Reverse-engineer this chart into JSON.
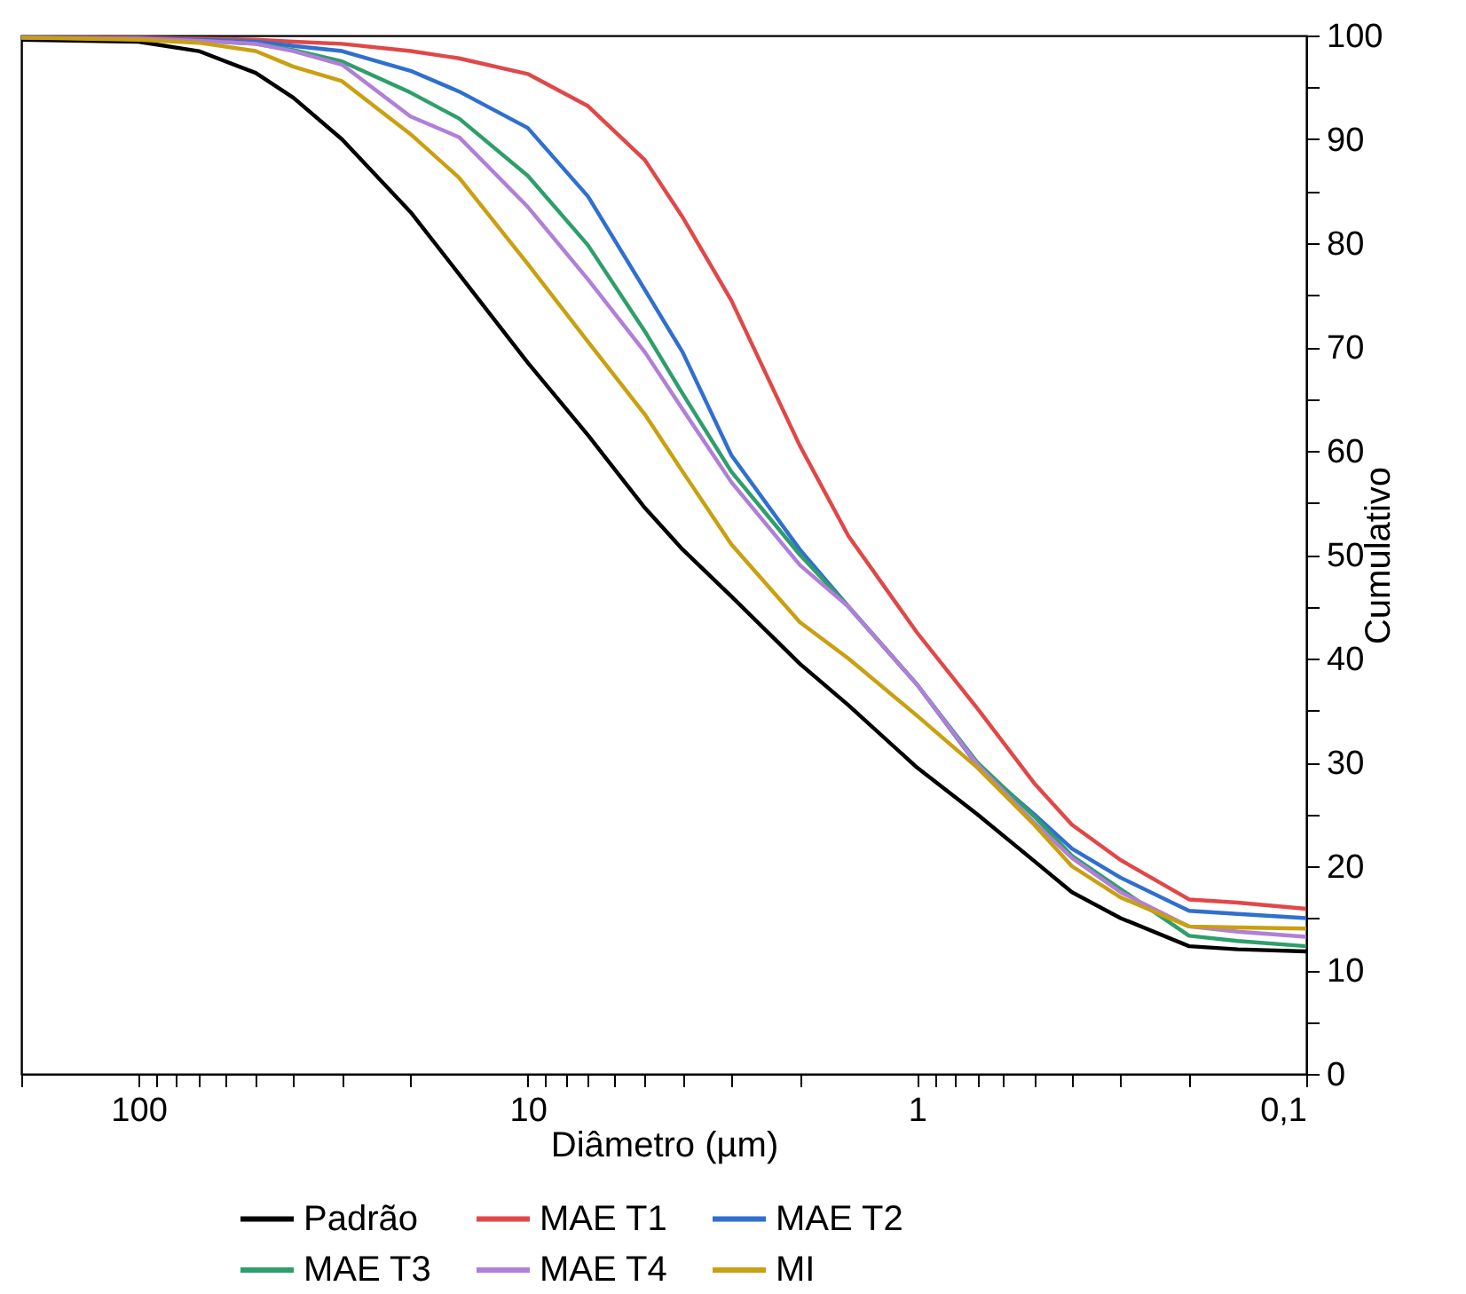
{
  "chart_data": {
    "type": "line",
    "xlabel": "Diâmetro (µm)",
    "ylabel": "Cumulativo",
    "x": [
      200,
      100,
      70,
      50,
      40,
      30,
      20,
      15,
      10,
      7,
      5,
      4,
      3,
      2,
      1.5,
      1,
      0.7,
      0.5,
      0.4,
      0.3,
      0.2,
      0.15,
      0.1
    ],
    "series": [
      {
        "name": "Padrão",
        "color": "#000000",
        "values": [
          99.6,
          99.4,
          98.5,
          96.4,
          94,
          90,
          83,
          77,
          68.5,
          61.5,
          54.5,
          50.5,
          46,
          39.5,
          35.5,
          29.5,
          25,
          20.5,
          17.5,
          15,
          12.3,
          12,
          11.8
        ]
      },
      {
        "name": "MAE T1",
        "color": "#e04848",
        "values": [
          99.8,
          99.8,
          99.7,
          99.6,
          99.4,
          99.2,
          98.5,
          97.8,
          96.3,
          93.2,
          88,
          82.5,
          74.5,
          60.5,
          51.8,
          42.5,
          35.2,
          28,
          24,
          20.6,
          16.8,
          16.5,
          15.9
        ]
      },
      {
        "name": "MAE T2",
        "color": "#2f6fd0",
        "values": [
          99.8,
          99.7,
          99.6,
          99.4,
          99,
          98.5,
          96.6,
          94.6,
          91.1,
          84.5,
          75.5,
          69.5,
          59.6,
          50.5,
          45,
          37.5,
          29.7,
          25,
          21.7,
          18.9,
          15.7,
          15.4,
          15
        ]
      },
      {
        "name": "MAE T3",
        "color": "#2e9e6a",
        "values": [
          null,
          null,
          99.5,
          99.2,
          98.6,
          97.5,
          94.5,
          92,
          86.5,
          79.8,
          71.5,
          65.5,
          58,
          50,
          45,
          37.5,
          30,
          24.8,
          21,
          17.8,
          13.3,
          12.8,
          12.3
        ]
      },
      {
        "name": "MAE T4",
        "color": "#b07fd8",
        "values": [
          99.8,
          99.7,
          99.5,
          99.2,
          98.5,
          97.2,
          92.2,
          90.2,
          83.5,
          76.5,
          69.5,
          64,
          57,
          49,
          45,
          37.5,
          29.8,
          24.2,
          20.8,
          17.5,
          14.2,
          13.7,
          13.2
        ]
      },
      {
        "name": "MI",
        "color": "#c9a010",
        "values": [
          99.8,
          99.6,
          99.3,
          98.5,
          97,
          95.6,
          90.5,
          86.3,
          78,
          70.5,
          63.5,
          58,
          51,
          43.5,
          40,
          34.5,
          29.5,
          24,
          20,
          17,
          14.2,
          14.1,
          14
        ]
      }
    ],
    "log": "x",
    "xlim": [
      200,
      0.1
    ],
    "xticks": [
      {
        "value": 200,
        "label": null
      },
      100,
      {
        "value": 90,
        "label": null
      },
      {
        "value": 80,
        "label": null
      },
      {
        "value": 70,
        "label": null
      },
      {
        "value": 60,
        "label": null
      },
      {
        "value": 50,
        "label": null
      },
      {
        "value": 40,
        "label": null
      },
      {
        "value": 30,
        "label": null
      },
      {
        "value": 20,
        "label": null
      },
      10,
      {
        "value": 9,
        "label": null
      },
      {
        "value": 8,
        "label": null
      },
      {
        "value": 7,
        "label": null
      },
      {
        "value": 6,
        "label": null
      },
      {
        "value": 5,
        "label": null
      },
      {
        "value": 4,
        "label": null
      },
      {
        "value": 3,
        "label": null
      },
      {
        "value": 2,
        "label": null
      },
      1,
      {
        "value": 0.9,
        "label": null
      },
      {
        "value": 0.8,
        "label": null
      },
      {
        "value": 0.7,
        "label": null
      },
      {
        "value": 0.6,
        "label": null
      },
      {
        "value": 0.5,
        "label": null
      },
      {
        "value": 0.4,
        "label": null
      },
      {
        "value": 0.3,
        "label": null
      },
      {
        "value": 0.2,
        "label": null
      },
      {
        "value": 0.1,
        "label": "0,1"
      }
    ],
    "ylim": [
      0,
      100
    ],
    "yticks": [
      0,
      {
        "value": 5,
        "label": null
      },
      10,
      {
        "value": 15,
        "label": null
      },
      20,
      {
        "value": 25,
        "label": null
      },
      30,
      {
        "value": 35,
        "label": null
      },
      40,
      {
        "value": 45,
        "label": null
      },
      50,
      {
        "value": 55,
        "label": null
      },
      60,
      {
        "value": 65,
        "label": null
      },
      70,
      {
        "value": 75,
        "label": null
      },
      80,
      {
        "value": 85,
        "label": null
      },
      90,
      {
        "value": 95,
        "label": null
      },
      100
    ],
    "grid": false,
    "legend": "bottom",
    "line_style": "solid"
  }
}
